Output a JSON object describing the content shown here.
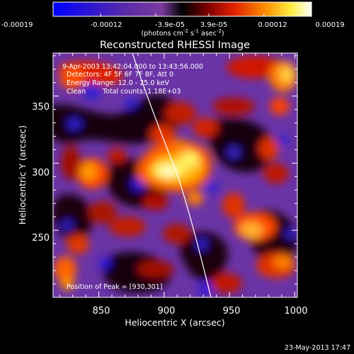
{
  "colorbar": {
    "tick_labels": [
      "-0.00019",
      "-0.00012",
      "-3.9e-05",
      "3.9e-05",
      "0.00012",
      "0.00019"
    ],
    "unit_label_main": "(photons cm",
    "unit_exp1": "-2",
    "unit_mid": " s",
    "unit_exp2": "-1",
    "unit_end": " asec",
    "unit_exp3": "-2",
    "unit_close": ")",
    "range": [
      -0.00019,
      0.00019
    ]
  },
  "plot": {
    "title": "Reconstructed RHESSI Image",
    "xlabel": "Heliocentric X (arcsec)",
    "ylabel": "Heliocentric Y (arcsec)",
    "xticks": [
      "850",
      "900",
      "950",
      "1000"
    ],
    "yticks": [
      "250",
      "300",
      "350"
    ],
    "xlim": [
      815,
      1002
    ],
    "ylim": [
      200,
      382
    ],
    "limb_color": "#ffffff"
  },
  "annotations": {
    "time_range": "9-Apr-2003 13:42:04.000 to 13:43:56.000",
    "detectors": "Detectors: 4F 5F 6F 7F 8F, Att 0",
    "energy": "Energy Range: 12.0 - 25.0 keV",
    "method": "Clean",
    "counts": "Total counts: 1.18E+03",
    "peak": "Position of Peak = [930,301]"
  },
  "footer": {
    "timestamp": "23-May-2013 17:47"
  }
}
